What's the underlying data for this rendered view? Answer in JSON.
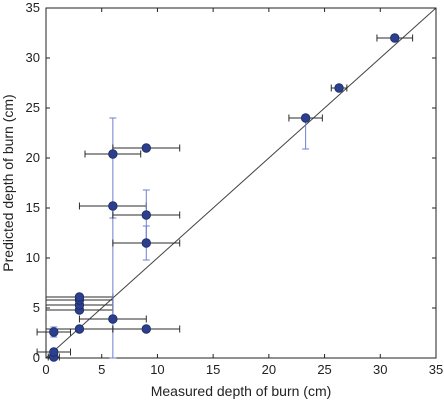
{
  "chart_data": {
    "type": "scatter",
    "xlabel": "Measured depth of burn (cm)",
    "ylabel": "Predicted depth of burn (cm)",
    "xlim": [
      0,
      35
    ],
    "ylim": [
      0,
      35
    ],
    "xticks": [
      0,
      5,
      10,
      15,
      20,
      25,
      30,
      35
    ],
    "yticks": [
      0,
      5,
      10,
      15,
      20,
      25,
      30,
      35
    ],
    "grid": false,
    "legend": "none",
    "reference_line": {
      "type": "y=x"
    },
    "colors": {
      "point": "#2b3f8c",
      "point_edge": "#1c2a66",
      "x_error_bar": "#2b2b2b",
      "y_error_bar": "#6f7fd1",
      "reference_line": "#444444",
      "axes": "#222222"
    },
    "series": [
      {
        "points": [
          {
            "x": 0.7,
            "y": 0.1,
            "xerr": 0.5
          },
          {
            "x": 0.7,
            "y": 0.6,
            "xerr": 1.5
          },
          {
            "x": 0.7,
            "y": 2.6,
            "xerr": 1.5,
            "yerr": 0.5
          },
          {
            "x": 3,
            "y": 2.9,
            "xerr": 3
          },
          {
            "x": 3,
            "y": 4.8,
            "xerr": 3
          },
          {
            "x": 3,
            "y": 5.3,
            "xerr": 3
          },
          {
            "x": 3,
            "y": 5.8,
            "xerr": 3
          },
          {
            "x": 3,
            "y": 6.1,
            "xerr": 3
          },
          {
            "x": 6,
            "y": 3.9,
            "xerr": 3
          },
          {
            "x": 6,
            "y": 15.2,
            "xerr": 3,
            "yerr_low": 1.2,
            "yerr_high": 0
          },
          {
            "x": 6,
            "y": 20.4,
            "xerr": 2.5,
            "yerr_low": 20.4,
            "yerr_high": 3.6
          },
          {
            "x": 9,
            "y": 2.9,
            "xerr": 3
          },
          {
            "x": 9,
            "y": 11.5,
            "xerr": 3,
            "yerr": 1.7
          },
          {
            "x": 9,
            "y": 14.3,
            "xerr": 3,
            "yerr": 2.5
          },
          {
            "x": 9,
            "y": 21,
            "xerr": 3
          },
          {
            "x": 23.3,
            "y": 24,
            "xerr": 1.5,
            "yerr_low": 3.1,
            "yerr_high": 0
          },
          {
            "x": 26.3,
            "y": 27,
            "xerr": 0.7
          },
          {
            "x": 31.3,
            "y": 32,
            "xerr": 1.6
          }
        ]
      }
    ]
  }
}
